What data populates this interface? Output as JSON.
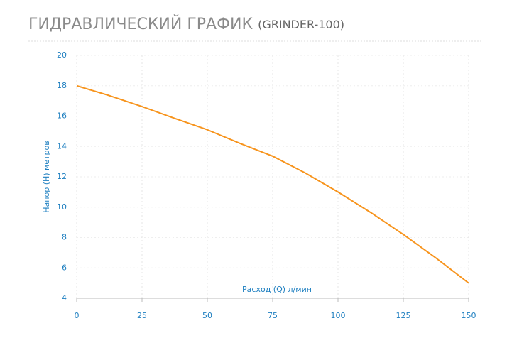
{
  "chart_data": {
    "type": "line",
    "title": "ГИДРАВЛИЧЕСКИЙ ГРАФИК",
    "subtitle": "(GRINDER-100)",
    "x_label": "Расход (Q) л/мин",
    "y_label": "Напор (Н) метров",
    "x": [
      0,
      12.5,
      25,
      37.5,
      50,
      62.5,
      75,
      87.5,
      100,
      112.5,
      125,
      137.5,
      150
    ],
    "series": [
      {
        "name": "GRINDER-100",
        "color": "#f7941d",
        "values": [
          18,
          17.35,
          16.63,
          15.85,
          15.1,
          14.2,
          13.36,
          12.25,
          11.0,
          9.65,
          8.2,
          6.65,
          5
        ]
      }
    ],
    "xlim": [
      0,
      150
    ],
    "xticks": [
      0,
      25,
      50,
      75,
      100,
      125,
      150
    ],
    "ylim": [
      4,
      20
    ],
    "yticks": [
      4,
      6,
      8,
      10,
      12,
      14,
      16,
      18,
      20
    ],
    "grid": true
  }
}
